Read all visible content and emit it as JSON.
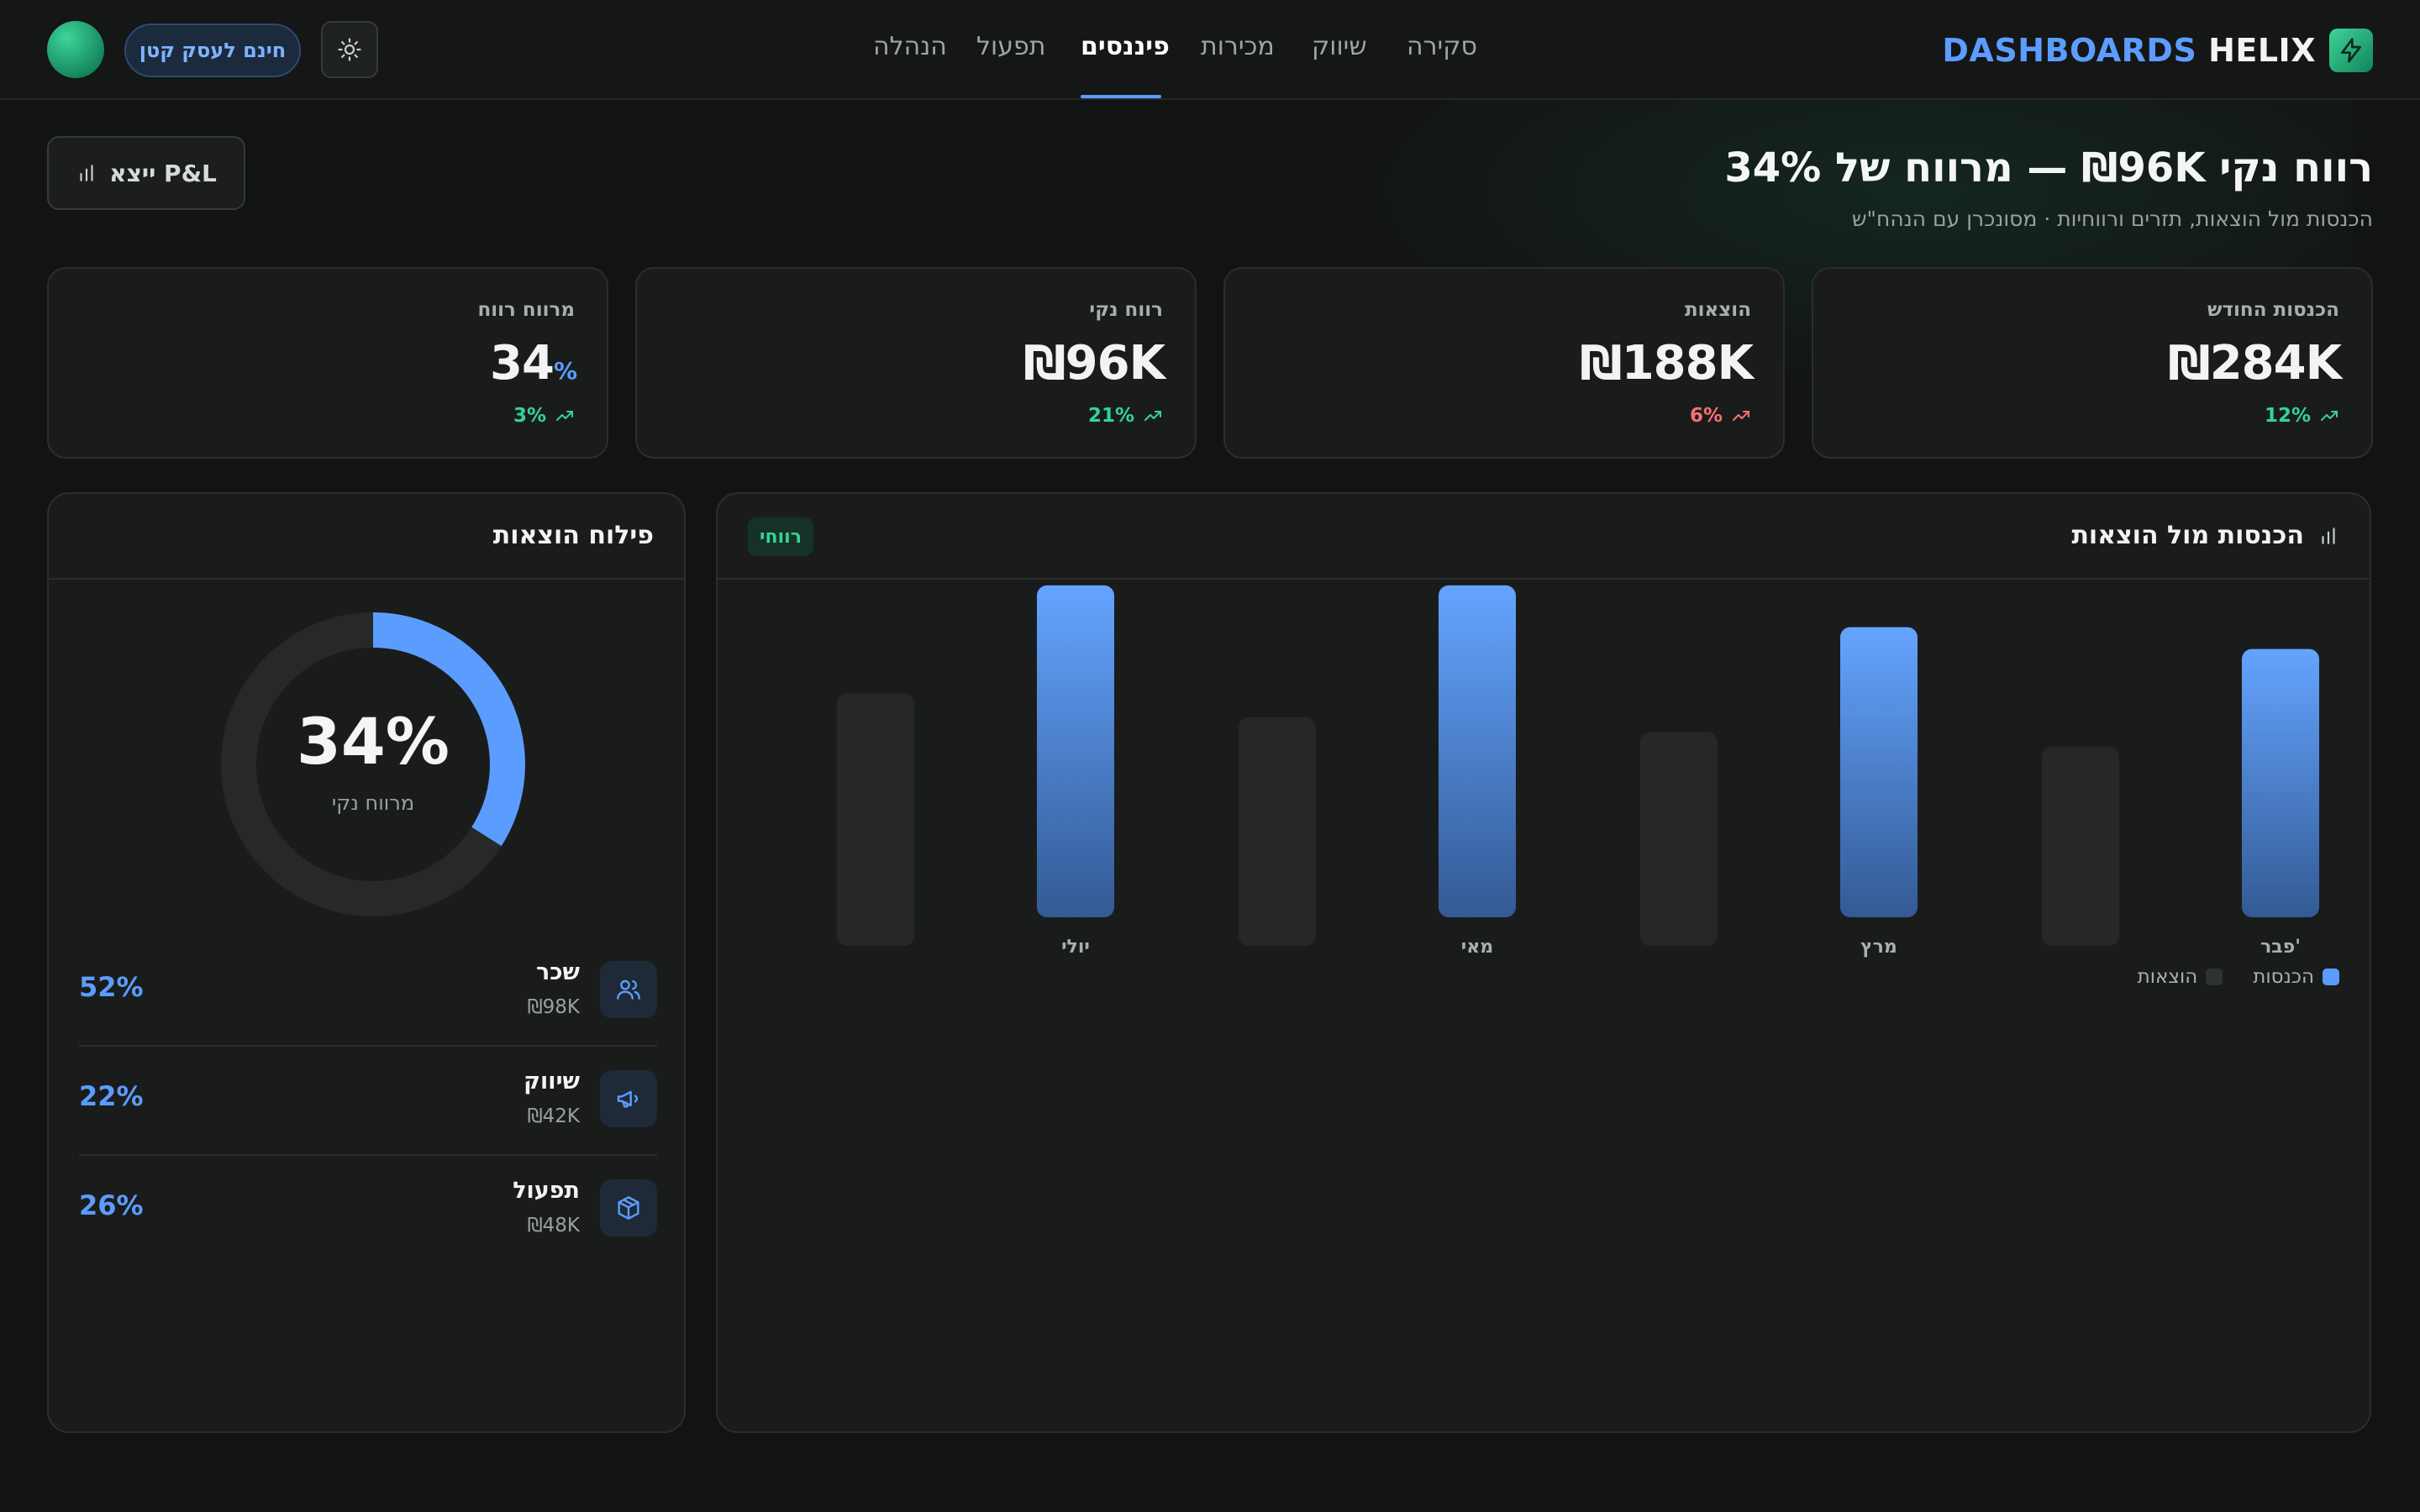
{
  "brand": {
    "part1": "DASHBOARDS",
    "part2": "HELIX",
    "logo_icon": "bolt-icon"
  },
  "nav": {
    "items": [
      {
        "label": "סקירה",
        "active": false
      },
      {
        "label": "שיווק",
        "active": false
      },
      {
        "label": "מכירות",
        "active": false
      },
      {
        "label": "פיננסים",
        "active": true
      },
      {
        "label": "תפעול",
        "active": false
      },
      {
        "label": "הנהלה",
        "active": false
      }
    ]
  },
  "topbar": {
    "promo_label": "חינם לעסק קטן",
    "theme_icon": "sun-icon"
  },
  "header": {
    "title": "רווח נקי ₪96K — מרווח של 34%",
    "subtitle": "הכנסות מול הוצאות, תזרים ורווחיות · מסונכרן עם הנהח\"ש",
    "export_label": "ייצא P&L"
  },
  "kpis": [
    {
      "label": "הכנסות החודש",
      "value": "₪284K",
      "delta": "12%",
      "trend": "up"
    },
    {
      "label": "הוצאות",
      "value": "₪188K",
      "delta": "6%",
      "trend": "down"
    },
    {
      "label": "רווח נקי",
      "value": "₪96K",
      "delta": "21%",
      "trend": "up"
    },
    {
      "label": "מרווח רווח",
      "value": "34",
      "value_suffix": "%",
      "delta": "3%",
      "trend": "up"
    }
  ],
  "revenue_panel": {
    "title": "הכנסות מול הוצאות",
    "tag": "רווחי",
    "legend": {
      "revenue": "הכנסות",
      "expenses": "הוצאות"
    }
  },
  "expense_panel": {
    "title": "פילוח הוצאות",
    "donut_value": "34%",
    "donut_label": "מרווח נקי",
    "rows": [
      {
        "name": "שכר",
        "amount": "₪98K",
        "percent": "52%",
        "icon": "users-icon"
      },
      {
        "name": "שיווק",
        "amount": "₪42K",
        "percent": "22%",
        "icon": "megaphone-icon"
      },
      {
        "name": "תפעול",
        "amount": "₪48K",
        "percent": "26%",
        "icon": "box-icon"
      }
    ]
  },
  "colors": {
    "accent": "#5b9dff",
    "positive": "#34d399",
    "negative": "#f87171",
    "expense_bar": "#252827"
  },
  "chart_data": {
    "type": "bar",
    "categories": [
      "פבר'",
      "מרץ",
      "מאי",
      "יולי"
    ],
    "category_labels_visible": true,
    "series": [
      {
        "name": "הכנסות",
        "values": [
          270,
          292,
          334,
          334
        ]
      },
      {
        "name": "הוצאות",
        "values": [
          200,
          215,
          230,
          254
        ]
      }
    ],
    "direction": "rtl",
    "ylim": [
      0,
      350
    ],
    "grid": false,
    "legend_position": "bottom-right"
  },
  "donut_chart": {
    "type": "pie",
    "values": [
      34,
      66
    ],
    "labels": [
      "מרווח נקי",
      ""
    ]
  }
}
